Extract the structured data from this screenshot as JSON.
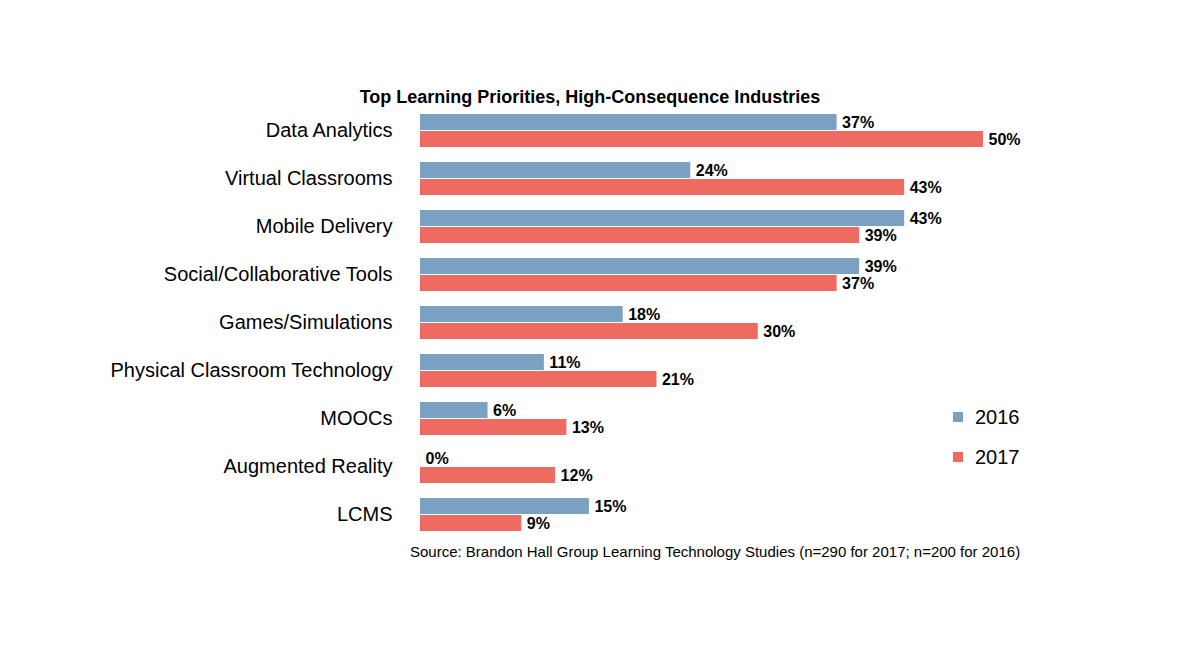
{
  "chart_data": {
    "type": "bar",
    "title": "Top Learning Priorities, High-Consequence Industries",
    "caption": "Source: Brandon Hall Group Learning Technology Studies (n=290 for 2017; n=200 for 2016)",
    "orientation": "horizontal",
    "categories": [
      "Data Analytics",
      "Virtual Classrooms",
      "Mobile Delivery",
      "Social/Collaborative Tools",
      "Games/Simulations",
      "Physical Classroom Technology",
      "MOOCs",
      "Augmented Reality",
      "LCMS"
    ],
    "series": [
      {
        "name": "2016",
        "color": "#7aa1c2",
        "values": [
          37,
          24,
          43,
          39,
          18,
          11,
          6,
          0,
          15
        ],
        "value_labels": [
          "37%",
          "24%",
          "43%",
          "39%",
          "18%",
          "11%",
          "6%",
          "0%",
          "15%"
        ]
      },
      {
        "name": "2017",
        "color": "#ef6b61",
        "values": [
          50,
          43,
          39,
          37,
          30,
          21,
          13,
          12,
          9
        ],
        "value_labels": [
          "50%",
          "43%",
          "39%",
          "37%",
          "30%",
          "21%",
          "13%",
          "12%",
          "9%"
        ]
      }
    ],
    "xlim": [
      0,
      50
    ],
    "data_labels": true,
    "tick_labels": "y",
    "legend": "right",
    "grid": false
  }
}
